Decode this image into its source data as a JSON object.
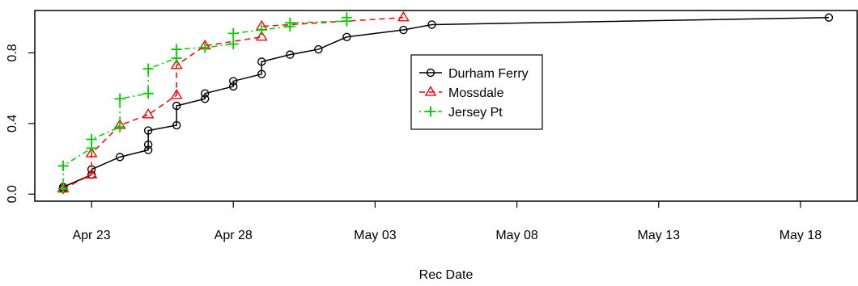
{
  "chart_data": {
    "type": "line",
    "xlabel": "Rec Date",
    "ylabel": "",
    "x_axis_type": "date",
    "xlim": [
      "2021-04-21",
      "2021-05-20"
    ],
    "ylim": [
      -0.04,
      1.04
    ],
    "x_ticks": [
      {
        "date": "2021-04-23",
        "label": "Apr 23"
      },
      {
        "date": "2021-04-28",
        "label": "Apr 28"
      },
      {
        "date": "2021-05-03",
        "label": "May 03"
      },
      {
        "date": "2021-05-08",
        "label": "May 08"
      },
      {
        "date": "2021-05-13",
        "label": "May 13"
      },
      {
        "date": "2021-05-18",
        "label": "May 18"
      }
    ],
    "y_ticks": [
      {
        "value": 0.0,
        "label": "0.0"
      },
      {
        "value": 0.4,
        "label": "0.4"
      },
      {
        "value": 0.8,
        "label": "0.8"
      }
    ],
    "grid": false,
    "legend_position": "center-right",
    "series": [
      {
        "name": "Durham Ferry",
        "color": "#000000",
        "marker": "circle",
        "line_style": "solid",
        "points": [
          {
            "x": "2021-04-22",
            "y": 0.03
          },
          {
            "x": "2021-04-22",
            "y": 0.04
          },
          {
            "x": "2021-04-23",
            "y": 0.11
          },
          {
            "x": "2021-04-23",
            "y": 0.14
          },
          {
            "x": "2021-04-24",
            "y": 0.21
          },
          {
            "x": "2021-04-25",
            "y": 0.25
          },
          {
            "x": "2021-04-25",
            "y": 0.28
          },
          {
            "x": "2021-04-25",
            "y": 0.36
          },
          {
            "x": "2021-04-26",
            "y": 0.39
          },
          {
            "x": "2021-04-26",
            "y": 0.5
          },
          {
            "x": "2021-04-27",
            "y": 0.54
          },
          {
            "x": "2021-04-27",
            "y": 0.57
          },
          {
            "x": "2021-04-28",
            "y": 0.61
          },
          {
            "x": "2021-04-28",
            "y": 0.64
          },
          {
            "x": "2021-04-29",
            "y": 0.68
          },
          {
            "x": "2021-04-29",
            "y": 0.75
          },
          {
            "x": "2021-04-30",
            "y": 0.79
          },
          {
            "x": "2021-05-01",
            "y": 0.82
          },
          {
            "x": "2021-05-02",
            "y": 0.89
          },
          {
            "x": "2021-05-04",
            "y": 0.93
          },
          {
            "x": "2021-05-05",
            "y": 0.96
          },
          {
            "x": "2021-05-19",
            "y": 1.0
          }
        ]
      },
      {
        "name": "Mossdale",
        "color": "#ff0000",
        "marker": "triangle",
        "line_style": "dashed",
        "points": [
          {
            "x": "2021-04-22",
            "y": 0.03
          },
          {
            "x": "2021-04-23",
            "y": 0.11
          },
          {
            "x": "2021-04-23",
            "y": 0.23
          },
          {
            "x": "2021-04-24",
            "y": 0.39
          },
          {
            "x": "2021-04-25",
            "y": 0.45
          },
          {
            "x": "2021-04-26",
            "y": 0.56
          },
          {
            "x": "2021-04-26",
            "y": 0.73
          },
          {
            "x": "2021-04-27",
            "y": 0.84
          },
          {
            "x": "2021-04-29",
            "y": 0.89
          },
          {
            "x": "2021-04-29",
            "y": 0.95
          },
          {
            "x": "2021-05-04",
            "y": 1.0
          }
        ]
      },
      {
        "name": "Jersey Pt",
        "color": "#00cc00",
        "marker": "plus",
        "line_style": "dotdash",
        "points": [
          {
            "x": "2021-04-22",
            "y": 0.03
          },
          {
            "x": "2021-04-22",
            "y": 0.16
          },
          {
            "x": "2021-04-23",
            "y": 0.26
          },
          {
            "x": "2021-04-23",
            "y": 0.31
          },
          {
            "x": "2021-04-24",
            "y": 0.38
          },
          {
            "x": "2021-04-24",
            "y": 0.54
          },
          {
            "x": "2021-04-25",
            "y": 0.57
          },
          {
            "x": "2021-04-25",
            "y": 0.71
          },
          {
            "x": "2021-04-26",
            "y": 0.77
          },
          {
            "x": "2021-04-26",
            "y": 0.82
          },
          {
            "x": "2021-04-27",
            "y": 0.83
          },
          {
            "x": "2021-04-28",
            "y": 0.85
          },
          {
            "x": "2021-04-28",
            "y": 0.91
          },
          {
            "x": "2021-04-29",
            "y": 0.93
          },
          {
            "x": "2021-04-30",
            "y": 0.95
          },
          {
            "x": "2021-04-30",
            "y": 0.97
          },
          {
            "x": "2021-05-02",
            "y": 0.98
          },
          {
            "x": "2021-05-02",
            "y": 1.0
          }
        ]
      }
    ]
  }
}
